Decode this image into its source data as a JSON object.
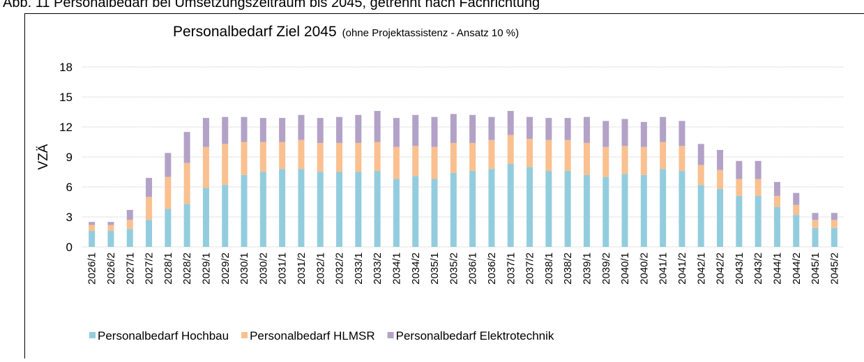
{
  "caption": "Abb. 11 Personalbedarf bei Umsetzungszeitraum bis 2045, getrennt nach Fachrichtung",
  "chart_data": {
    "type": "bar",
    "stacked": true,
    "title": "Personalbedarf Ziel 2045",
    "subtitle": "(ohne Projektassistenz - Ansatz 10 %)",
    "y_label": "VZÄ",
    "categories": [
      "2026/1",
      "2026/2",
      "2027/1",
      "2027/2",
      "2028/1",
      "2028/2",
      "2029/1",
      "2029/2",
      "2030/1",
      "2030/2",
      "2031/1",
      "2031/2",
      "2032/1",
      "2032/2",
      "2033/1",
      "2033/2",
      "2034/1",
      "2034/2",
      "2035/1",
      "2035/2",
      "2036/1",
      "2036/2",
      "2037/1",
      "2037/2",
      "2038/1",
      "2038/2",
      "2039/1",
      "2039/2",
      "2040/1",
      "2040/2",
      "2041/1",
      "2041/2",
      "2042/1",
      "2042/2",
      "2043/1",
      "2043/2",
      "2044/1",
      "2044/2",
      "2045/1",
      "2045/2"
    ],
    "series": [
      {
        "name": "Personalbedarf Hochbau",
        "color": "#93cddd",
        "values": [
          1.6,
          1.6,
          1.8,
          2.7,
          3.8,
          4.3,
          5.9,
          6.2,
          7.2,
          7.5,
          7.8,
          7.8,
          7.5,
          7.5,
          7.5,
          7.6,
          6.8,
          7.1,
          6.8,
          7.4,
          7.6,
          7.8,
          8.3,
          8.0,
          7.6,
          7.6,
          7.2,
          7.0,
          7.3,
          7.2,
          7.8,
          7.6,
          6.2,
          5.8,
          5.1,
          5.1,
          4.0,
          3.2,
          1.9,
          1.9
        ]
      },
      {
        "name": "Personalbedarf HLMSR",
        "color": "#fac090",
        "values": [
          0.6,
          0.6,
          0.9,
          2.3,
          3.2,
          4.1,
          4.1,
          4.1,
          3.3,
          3.0,
          2.7,
          2.9,
          2.9,
          2.9,
          2.9,
          2.9,
          3.2,
          3.0,
          3.2,
          3.0,
          2.8,
          2.9,
          2.9,
          2.8,
          3.1,
          3.1,
          3.2,
          3.0,
          2.8,
          2.8,
          2.7,
          2.5,
          2.0,
          1.9,
          1.7,
          1.7,
          1.1,
          1.0,
          0.8,
          0.8
        ]
      },
      {
        "name": "Personalbedarf Elektrotechnik",
        "color": "#b3a2c7",
        "values": [
          0.3,
          0.3,
          1.0,
          1.9,
          2.4,
          3.1,
          2.9,
          2.7,
          2.5,
          2.4,
          2.4,
          2.5,
          2.5,
          2.6,
          2.8,
          3.1,
          2.9,
          3.1,
          3.0,
          2.9,
          2.8,
          2.3,
          2.4,
          2.2,
          2.2,
          2.2,
          2.6,
          2.6,
          2.7,
          2.5,
          2.5,
          2.5,
          2.1,
          2.0,
          1.8,
          1.8,
          1.4,
          1.2,
          0.7,
          0.7
        ]
      }
    ],
    "ylim": [
      0,
      18
    ],
    "yticks": [
      0,
      3,
      6,
      9,
      12,
      15,
      18
    ],
    "grid": true,
    "legend": "bottom"
  }
}
